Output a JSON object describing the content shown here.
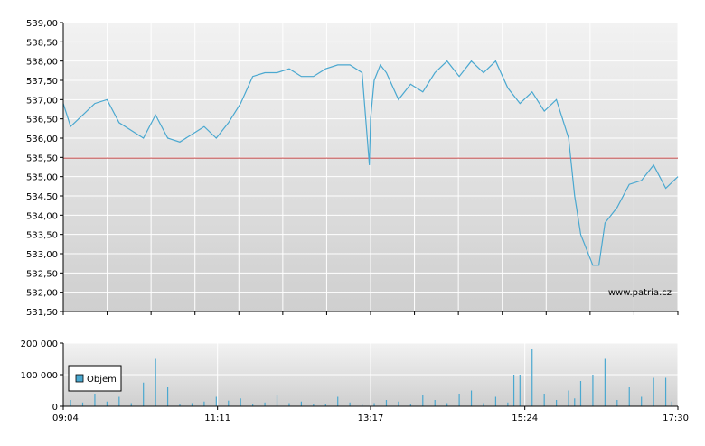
{
  "watermark": "www.patria.cz",
  "legend_label": "Objem",
  "colors": {
    "price_line": "#4aa8d0",
    "reference_line": "#c04040",
    "volume_bar": "#4aa8d0",
    "grid": "#ffffff",
    "plot_bg_top": "#f2f2f2",
    "plot_bg_bottom": "#cfcfcf"
  },
  "chart_data": [
    {
      "type": "line",
      "title": "",
      "ylim": [
        531.5,
        539.0
      ],
      "yticks": [
        "539,00",
        "538,50",
        "538,00",
        "537,50",
        "537,00",
        "536,50",
        "536,00",
        "535,50",
        "535,00",
        "534,50",
        "534,00",
        "533,50",
        "533,00",
        "532,50",
        "532,00",
        "531,50"
      ],
      "reference_value": 535.48,
      "x_start": "09:04",
      "x_end": "17:30",
      "series": [
        {
          "x": [
            "09:04",
            "09:10",
            "09:20",
            "09:30",
            "09:40",
            "09:50",
            "10:00",
            "10:10",
            "10:20",
            "10:30",
            "10:40",
            "10:50",
            "11:00",
            "11:10",
            "11:20",
            "11:30",
            "11:40",
            "11:50",
            "12:00",
            "12:10",
            "12:20",
            "12:30",
            "12:40",
            "12:50",
            "13:00",
            "13:10",
            "13:16",
            "13:17",
            "13:20",
            "13:25",
            "13:30",
            "13:40",
            "13:50",
            "14:00",
            "14:10",
            "14:20",
            "14:30",
            "14:40",
            "14:50",
            "15:00",
            "15:10",
            "15:20",
            "15:30",
            "15:40",
            "15:50",
            "16:00",
            "16:05",
            "16:10",
            "16:20",
            "16:25",
            "16:30",
            "16:40",
            "16:50",
            "17:00",
            "17:10",
            "17:20",
            "17:30"
          ],
          "y": [
            536.9,
            536.3,
            536.6,
            536.9,
            537.0,
            536.4,
            536.2,
            536.0,
            536.6,
            536.0,
            535.9,
            536.1,
            536.3,
            536.0,
            536.4,
            536.9,
            537.6,
            537.7,
            537.7,
            537.8,
            537.6,
            537.6,
            537.8,
            537.9,
            537.9,
            537.7,
            535.3,
            536.5,
            537.5,
            537.9,
            537.7,
            537.0,
            537.4,
            537.2,
            537.7,
            538.0,
            537.6,
            538.0,
            537.7,
            538.0,
            537.3,
            536.9,
            537.2,
            536.7,
            537.0,
            536.0,
            534.5,
            533.5,
            532.7,
            532.7,
            533.8,
            534.2,
            534.8,
            534.9,
            535.3,
            534.7,
            535.0
          ]
        }
      ]
    },
    {
      "type": "bar",
      "title": "",
      "series_name": "Objem",
      "ylim": [
        0,
        200000
      ],
      "yticks": [
        "200 000",
        "100 000",
        "0"
      ],
      "xticks": [
        "09:04",
        "11:11",
        "13:17",
        "15:24",
        "17:30"
      ],
      "x": [
        "09:10",
        "09:20",
        "09:30",
        "09:40",
        "09:50",
        "10:00",
        "10:10",
        "10:20",
        "10:30",
        "10:40",
        "10:50",
        "11:00",
        "11:10",
        "11:20",
        "11:30",
        "11:40",
        "11:50",
        "12:00",
        "12:10",
        "12:20",
        "12:30",
        "12:40",
        "12:50",
        "13:00",
        "13:10",
        "13:20",
        "13:30",
        "13:40",
        "13:50",
        "14:00",
        "14:10",
        "14:20",
        "14:30",
        "14:40",
        "14:50",
        "15:00",
        "15:10",
        "15:15",
        "15:20",
        "15:30",
        "15:40",
        "15:50",
        "16:00",
        "16:05",
        "16:10",
        "16:20",
        "16:30",
        "16:40",
        "16:50",
        "17:00",
        "17:10",
        "17:20",
        "17:25"
      ],
      "values": [
        20000,
        12000,
        40000,
        15000,
        30000,
        10000,
        75000,
        150000,
        60000,
        8000,
        10000,
        15000,
        30000,
        18000,
        25000,
        8000,
        12000,
        35000,
        10000,
        15000,
        8000,
        6000,
        30000,
        12000,
        8000,
        10000,
        20000,
        15000,
        8000,
        35000,
        20000,
        10000,
        40000,
        50000,
        10000,
        30000,
        12000,
        100000,
        100000,
        180000,
        40000,
        20000,
        50000,
        25000,
        80000,
        100000,
        150000,
        20000,
        60000,
        30000,
        90000,
        90000,
        15000
      ]
    }
  ]
}
